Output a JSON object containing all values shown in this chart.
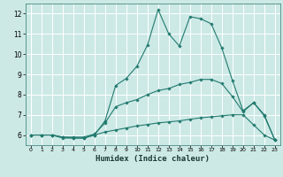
{
  "xlabel": "Humidex (Indice chaleur)",
  "line_color": "#217a6e",
  "background_color": "#cce9e6",
  "grid_color": "#ffffff",
  "xlim": [
    -0.5,
    23.5
  ],
  "ylim": [
    5.5,
    12.5
  ],
  "yticks": [
    6,
    7,
    8,
    9,
    10,
    11,
    12
  ],
  "xticks": [
    0,
    1,
    2,
    3,
    4,
    5,
    6,
    7,
    8,
    9,
    10,
    11,
    12,
    13,
    14,
    15,
    16,
    17,
    18,
    19,
    20,
    21,
    22,
    23
  ],
  "series": [
    {
      "x": [
        0,
        1,
        2,
        3,
        4,
        5,
        6,
        7,
        8,
        9,
        10,
        11,
        12,
        13,
        14,
        15,
        16,
        17,
        18,
        19,
        20,
        21,
        22,
        23
      ],
      "y": [
        6.0,
        6.0,
        6.0,
        5.9,
        5.85,
        5.85,
        6.0,
        6.7,
        8.45,
        8.8,
        9.4,
        10.45,
        12.2,
        11.0,
        10.4,
        11.85,
        11.75,
        11.5,
        10.3,
        8.7,
        7.2,
        7.6,
        6.95,
        5.75
      ]
    },
    {
      "x": [
        0,
        1,
        2,
        3,
        4,
        5,
        6,
        7,
        8,
        9,
        10,
        11,
        12,
        13,
        14,
        15,
        16,
        17,
        18,
        19,
        20,
        21,
        22,
        23
      ],
      "y": [
        6.0,
        6.0,
        6.0,
        5.9,
        5.9,
        5.9,
        6.05,
        6.6,
        7.4,
        7.6,
        7.75,
        8.0,
        8.2,
        8.3,
        8.5,
        8.6,
        8.75,
        8.75,
        8.55,
        7.9,
        7.15,
        7.6,
        7.0,
        5.75
      ]
    },
    {
      "x": [
        0,
        1,
        2,
        3,
        4,
        5,
        6,
        7,
        8,
        9,
        10,
        11,
        12,
        13,
        14,
        15,
        16,
        17,
        18,
        19,
        20,
        21,
        22,
        23
      ],
      "y": [
        6.0,
        6.0,
        6.0,
        5.85,
        5.85,
        5.85,
        6.0,
        6.15,
        6.25,
        6.35,
        6.45,
        6.52,
        6.6,
        6.65,
        6.7,
        6.78,
        6.85,
        6.9,
        6.95,
        7.0,
        7.0,
        6.5,
        6.0,
        5.75
      ]
    }
  ]
}
